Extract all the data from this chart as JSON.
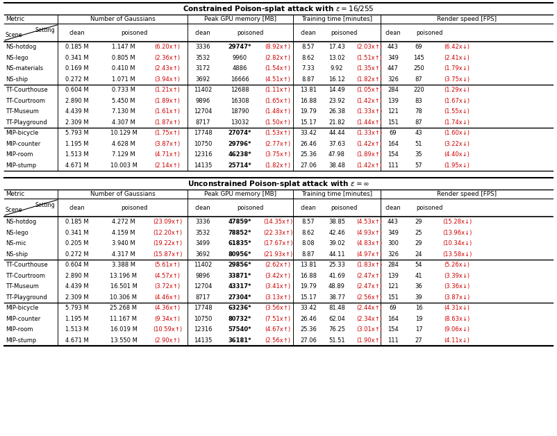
{
  "title1": "Constrained Poison-splat attack with $\\epsilon = 16/255$",
  "title2": "Unconstrained Poison-splat attack with $\\epsilon = \\infty$",
  "groups1": [
    {
      "name": "NS",
      "rows": [
        [
          "NS-hotdog",
          "0.185 M",
          "1.147 M",
          "(6.20x↑)",
          "3336",
          "29747*",
          "(8.92x↑)",
          true,
          "8.57",
          "17.43",
          "(2.03x↑)",
          "443",
          "69",
          "(6.42x↓)"
        ],
        [
          "NS-lego",
          "0.341 M",
          "0.805 M",
          "(2.36x↑)",
          "3532",
          "9960",
          "(2.82x↑)",
          false,
          "8.62",
          "13.02",
          "(1.51x↑)",
          "349",
          "145",
          "(2.41x↓)"
        ],
        [
          "NS-materials",
          "0.169 M",
          "0.410 M",
          "(2.43x↑)",
          "3172",
          "4886",
          "(1.54x↑)",
          false,
          "7.33",
          "9.92",
          "(1.35x↑)",
          "447",
          "250",
          "(1.79x↓)"
        ],
        [
          "NS-ship",
          "0.272 M",
          "1.071 M",
          "(3.94x↑)",
          "3692",
          "16666",
          "(4.51x↑)",
          false,
          "8.87",
          "16.12",
          "(1.82x↑)",
          "326",
          "87",
          "(3.75x↓)"
        ]
      ]
    },
    {
      "name": "TT",
      "rows": [
        [
          "TT-Courthouse",
          "0.604 M",
          "0.733 M",
          "(1.21x↑)",
          "11402",
          "12688",
          "(1.11x↑)",
          false,
          "13.81",
          "14.49",
          "(1.05x↑)",
          "284",
          "220",
          "(1.29x↓)"
        ],
        [
          "TT-Courtroom",
          "2.890 M",
          "5.450 M",
          "(1.89x↑)",
          "9896",
          "16308",
          "(1.65x↑)",
          false,
          "16.88",
          "23.92",
          "(1.42x↑)",
          "139",
          "83",
          "(1.67x↓)"
        ],
        [
          "TT-Museum",
          "4.439 M",
          "7.130 M",
          "(1.61x↑)",
          "12704",
          "18790",
          "(1.48x↑)",
          false,
          "19.79",
          "26.38",
          "(1.33x↑)",
          "121",
          "78",
          "(1.55x↓)"
        ],
        [
          "TT-Playground",
          "2.309 M",
          "4.307 M",
          "(1.87x↑)",
          "8717",
          "13032",
          "(1.50x↑)",
          false,
          "15.17",
          "21.82",
          "(1.44x↑)",
          "151",
          "87",
          "(1.74x↓)"
        ]
      ]
    },
    {
      "name": "MIP",
      "rows": [
        [
          "MIP-bicycle",
          "5.793 M",
          "10.129 M",
          "(1.75x↑)",
          "17748",
          "27074*",
          "(1.53x↑)",
          true,
          "33.42",
          "44.44",
          "(1.33x↑)",
          "69",
          "43",
          "(1.60x↓)"
        ],
        [
          "MIP-counter",
          "1.195 M",
          "4.628 M",
          "(3.87x↑)",
          "10750",
          "29796*",
          "(2.77x↑)",
          true,
          "26.46",
          "37.63",
          "(1.42x↑)",
          "164",
          "51",
          "(3.22x↓)"
        ],
        [
          "MIP-room",
          "1.513 M",
          "7.129 M",
          "(4.71x↑)",
          "12316",
          "46238*",
          "(3.75x↑)",
          true,
          "25.36",
          "47.98",
          "(1.89x↑)",
          "154",
          "35",
          "(4.40x↓)"
        ],
        [
          "MIP-stump",
          "4.671 M",
          "10.003 M",
          "(2.14x↑)",
          "14135",
          "25714*",
          "(1.82x↑)",
          true,
          "27.06",
          "38.48",
          "(1.42x↑)",
          "111",
          "57",
          "(1.95x↓)"
        ]
      ]
    }
  ],
  "groups2": [
    {
      "name": "NS",
      "rows": [
        [
          "NS-hotdog",
          "0.185 M",
          "4.272 M",
          "(23.09x↑)",
          "3336",
          "47859*",
          "(14.35x↑)",
          true,
          "8.57",
          "38.85",
          "(4.53x↑)",
          "443",
          "29",
          "(15.28x↓)"
        ],
        [
          "NS-lego",
          "0.341 M",
          "4.159 M",
          "(12.20x↑)",
          "3532",
          "78852*",
          "(22.33x↑)",
          true,
          "8.62",
          "42.46",
          "(4.93x↑)",
          "349",
          "25",
          "(13.96x↓)"
        ],
        [
          "NS-mic",
          "0.205 M",
          "3.940 M",
          "(19.22x↑)",
          "3499",
          "61835*",
          "(17.67x↑)",
          true,
          "8.08",
          "39.02",
          "(4.83x↑)",
          "300",
          "29",
          "(10.34x↓)"
        ],
        [
          "NS-ship",
          "0.272 M",
          "4.317 M",
          "(15.87x↑)",
          "3692",
          "80956*",
          "(21.93x↑)",
          true,
          "8.87",
          "44.11",
          "(4.97x↑)",
          "326",
          "24",
          "(13.58x↓)"
        ]
      ]
    },
    {
      "name": "TT",
      "rows": [
        [
          "TT-Courthouse",
          "0.604 M",
          "3.388 M",
          "(5.61x↑)",
          "11402",
          "29856*",
          "(2.62x↑)",
          true,
          "13.81",
          "25.33",
          "(1.83x↑)",
          "284",
          "54",
          "(5.26x↓)"
        ],
        [
          "TT-Courtroom",
          "2.890 M",
          "13.196 M",
          "(4.57x↑)",
          "9896",
          "33871*",
          "(3.42x↑)",
          true,
          "16.88",
          "41.69",
          "(2.47x↑)",
          "139",
          "41",
          "(3.39x↓)"
        ],
        [
          "TT-Museum",
          "4.439 M",
          "16.501 M",
          "(3.72x↑)",
          "12704",
          "43317*",
          "(3.41x↑)",
          true,
          "19.79",
          "48.89",
          "(2.47x↑)",
          "121",
          "36",
          "(3.36x↓)"
        ],
        [
          "TT-Playground",
          "2.309 M",
          "10.306 M",
          "(4.46x↑)",
          "8717",
          "27304*",
          "(3.13x↑)",
          true,
          "15.17",
          "38.77",
          "(2.56x↑)",
          "151",
          "39",
          "(3.87x↓)"
        ]
      ]
    },
    {
      "name": "MIP",
      "rows": [
        [
          "MIP-bicycle",
          "5.793 M",
          "25.268 M",
          "(4.36x↑)",
          "17748",
          "63236*",
          "(3.56x↑)",
          true,
          "33.42",
          "81.48",
          "(2.44x↑)",
          "69",
          "16",
          "(4.31x↓)"
        ],
        [
          "MIP-counter",
          "1.195 M",
          "11.167 M",
          "(9.34x↑)",
          "10750",
          "80732*",
          "(7.51x↑)",
          true,
          "26.46",
          "62.04",
          "(2.34x↑)",
          "164",
          "19",
          "(8.63x↓)"
        ],
        [
          "MIP-room",
          "1.513 M",
          "16.019 M",
          "(10.59x↑)",
          "12316",
          "57540*",
          "(4.67x↑)",
          true,
          "25.36",
          "76.25",
          "(3.01x↑)",
          "154",
          "17",
          "(9.06x↓)"
        ],
        [
          "MIP-stump",
          "4.671 M",
          "13.550 M",
          "(2.90x↑)",
          "14135",
          "36181*",
          "(2.56x↑)",
          true,
          "27.06",
          "51.51",
          "(1.90x↑)",
          "111",
          "27",
          "(4.11x↓)"
        ]
      ]
    }
  ],
  "red_color": "#CC0000"
}
